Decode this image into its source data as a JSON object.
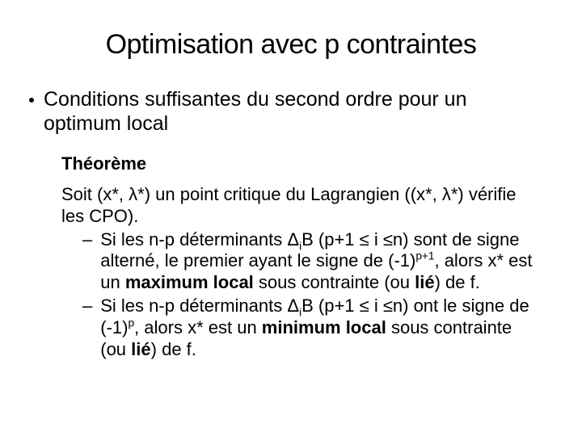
{
  "colors": {
    "background": "#ffffff",
    "text": "#000000"
  },
  "typography": {
    "title_fontsize": 34,
    "body_fontsize": 25,
    "theorem_fontsize": 22,
    "family": "Arial"
  },
  "title": "Optimisation avec p contraintes",
  "bullet": "Conditions suffisantes du second ordre pour un optimum local",
  "theorem": {
    "label": "Théorème",
    "intro_prefix": "Soit (x*, ",
    "lambda": "λ",
    "intro_mid": "*) un point critique du Lagrangien ((x*, ",
    "intro_suffix": "*) vérifie les CPO).",
    "items": [
      {
        "t1": "Si les n-p déterminants ",
        "delta": "Δ",
        "sub": "i",
        "t2": "B (p+1 ≤ i ≤n) sont de signe alterné, le premier ayant le signe de (-1)",
        "sup": "p+1",
        "t3": ", alors x* est un ",
        "bold1": "maximum local",
        "t4": " sous contrainte (ou ",
        "bold2": "lié",
        "t5": ") de f."
      },
      {
        "t1": "Si les n-p déterminants ",
        "delta": "Δ",
        "sub": "i",
        "t2": "B (p+1 ≤ i ≤n) ont le signe de (-1)",
        "sup": "p",
        "t3": ", alors x* est un ",
        "bold1": "minimum local",
        "t4": " sous contrainte (ou ",
        "bold2": "lié",
        "t5": ") de f."
      }
    ]
  },
  "dash": "–"
}
